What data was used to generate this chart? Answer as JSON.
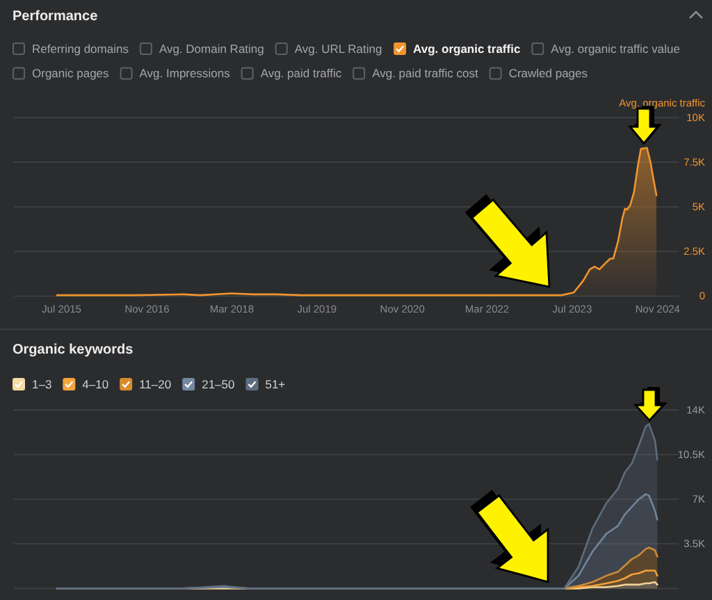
{
  "chart_data": [
    {
      "type": "area",
      "title": "Performance",
      "legend": "top right",
      "grid": "y",
      "annotations": [
        "Referring domains",
        "Avg. Domain Rating",
        "Avg. URL Rating",
        "Avg. organic traffic value",
        "Organic pages",
        "Avg. Impressions",
        "Avg. paid traffic",
        "Avg. paid traffic cost",
        "Crawled pages"
      ],
      "x": [
        "2015-06-05",
        "2016-01-01",
        "2016-09-01",
        "2017-06-01",
        "2017-09-01",
        "2018-03-01",
        "2018-07-01",
        "2018-11-15",
        "2019-04-01",
        "2020-06-01",
        "2021-09-01",
        "2022-10-01",
        "2023-05-01",
        "2023-07-10",
        "2023-09-01",
        "2023-10-10",
        "2023-11-06",
        "2023-12-04",
        "2024-01-13",
        "2024-02-04",
        "2024-02-21",
        "2024-03-19",
        "2024-04-13",
        "2024-04-28",
        "2024-05-10",
        "2024-05-28",
        "2024-06-18",
        "2024-07-10",
        "2024-07-28",
        "2024-09-01",
        "2024-09-21",
        "2024-10-10",
        "2024-10-25"
      ],
      "series": [
        {
          "name": "Avg. organic traffic",
          "color": "#f0952e",
          "values": [
            50,
            50,
            50,
            100,
            50,
            150,
            100,
            100,
            50,
            50,
            50,
            50,
            50,
            200,
            850,
            1500,
            1650,
            1500,
            1900,
            2100,
            2100,
            3050,
            4350,
            4900,
            4850,
            5100,
            5800,
            7250,
            8250,
            8300,
            7500,
            6450,
            5650
          ]
        }
      ],
      "xlim": [
        "2014-10",
        "2025-03"
      ],
      "ylim": [
        0,
        10000
      ],
      "xticks": [
        {
          "value": "2015-07",
          "label": "Jul 2015"
        },
        {
          "value": "2016-11",
          "label": "Nov 2016"
        },
        {
          "value": "2018-03",
          "label": "Mar 2018"
        },
        {
          "value": "2019-07",
          "label": "Jul 2019"
        },
        {
          "value": "2020-11",
          "label": "Nov 2020"
        },
        {
          "value": "2022-03",
          "label": "Mar 2022"
        },
        {
          "value": "2023-07",
          "label": "Jul 2023"
        },
        {
          "value": "2024-11",
          "label": "Nov 2024"
        }
      ],
      "yticks": [
        0,
        {
          "value": 2500,
          "label": "2.5K"
        },
        {
          "value": 5000,
          "label": "5K"
        },
        {
          "value": 7500,
          "label": "7.5K"
        },
        {
          "value": 10000,
          "label": "10K"
        }
      ]
    },
    {
      "type": "area",
      "title": "Organic keywords",
      "stacked": true,
      "legend": "top left",
      "grid": "y",
      "tick_labels": "y",
      "x": [
        "2015-06-05",
        "2017-06-01",
        "2018-01-15",
        "2018-06-01",
        "2023-05-17",
        "2023-08-06",
        "2023-10-25",
        "2024-01-13",
        "2024-03-18",
        "2024-04-27",
        "2024-06-06",
        "2024-07-16",
        "2024-08-25",
        "2024-09-12",
        "2024-10-17",
        "2024-10-30"
      ],
      "series": [
        {
          "name": "1–3",
          "color": "#f6d9a3",
          "values": [
            0,
            0,
            0,
            0,
            0,
            0,
            100,
            100,
            200,
            300,
            300,
            300,
            400,
            400,
            500,
            300
          ]
        },
        {
          "name": "4–10",
          "color": "#f5a43a",
          "values": [
            0,
            0,
            100,
            0,
            0,
            100,
            100,
            300,
            400,
            500,
            800,
            900,
            1000,
            1000,
            900,
            700
          ]
        },
        {
          "name": "11–20",
          "color": "#d98b2b",
          "values": [
            0,
            0,
            0,
            0,
            0,
            100,
            300,
            600,
            700,
            1000,
            1200,
            1400,
            1700,
            1800,
            1600,
            1500
          ]
        },
        {
          "name": "21–50",
          "color": "#7489a0",
          "values": [
            0,
            0,
            0,
            0,
            0,
            800,
            2400,
            3300,
            3600,
            4000,
            4100,
            4400,
            4300,
            4100,
            3100,
            2900
          ]
        },
        {
          "name": "51+",
          "color": "#5d6d80",
          "values": [
            0,
            0,
            100,
            0,
            0,
            700,
            1800,
            2400,
            2900,
            3300,
            3400,
            4200,
            5300,
            5600,
            5500,
            4700
          ]
        }
      ],
      "xlim": [
        "2014-10",
        "2025-03"
      ],
      "ylim": [
        0,
        14000
      ],
      "yticks": [
        {
          "value": 0,
          "label": null
        },
        {
          "value": 3500,
          "label": "3.5K"
        },
        {
          "value": 7000,
          "label": "7K"
        },
        {
          "value": 10500,
          "label": "10.5K"
        },
        {
          "value": 14000,
          "label": "14K"
        }
      ]
    }
  ]
}
